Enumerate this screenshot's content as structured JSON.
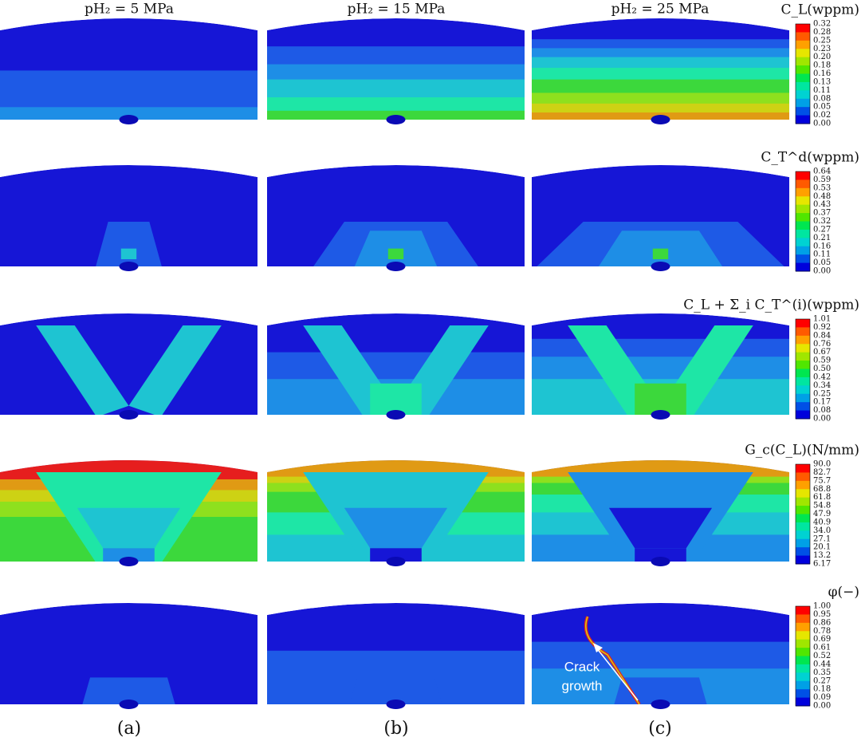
{
  "columns": [
    {
      "title": "pH₂ = 5 MPa",
      "label": "(a)"
    },
    {
      "title": "pH₂ = 15 MPa",
      "label": "(b)"
    },
    {
      "title": "pH₂ = 25 MPa",
      "label": "(c)"
    }
  ],
  "rows": [
    {
      "colorbar_title": "C_L(wppm)",
      "ticks": [
        "0.32",
        "0.28",
        "0.25",
        "0.23",
        "0.20",
        "0.18",
        "0.16",
        "0.13",
        "0.11",
        "0.08",
        "0.05",
        "0.02",
        "0.00"
      ]
    },
    {
      "colorbar_title": "C_T^d(wppm)",
      "ticks": [
        "0.64",
        "0.59",
        "0.53",
        "0.48",
        "0.43",
        "0.37",
        "0.32",
        "0.27",
        "0.21",
        "0.16",
        "0.11",
        "0.05",
        "0.00"
      ]
    },
    {
      "colorbar_title": "C_L + Σ_i C_T^(i)(wppm)",
      "ticks": [
        "1.01",
        "0.92",
        "0.84",
        "0.76",
        "0.67",
        "0.59",
        "0.50",
        "0.42",
        "0.34",
        "0.25",
        "0.17",
        "0.08",
        "0.00"
      ]
    },
    {
      "colorbar_title": "G_c(C_L)(N/mm)",
      "ticks": [
        "90.0",
        "82.7",
        "75.7",
        "68.8",
        "61.8",
        "54.8",
        "47.9",
        "40.9",
        "34.0",
        "27.1",
        "20.1",
        "13.2",
        "6.17"
      ]
    },
    {
      "colorbar_title": "φ(−)",
      "ticks": [
        "1.00",
        "0.95",
        "0.86",
        "0.78",
        "0.69",
        "0.61",
        "0.52",
        "0.44",
        "0.35",
        "0.27",
        "0.18",
        "0.09",
        "0.00"
      ]
    }
  ],
  "annotation": {
    "lines": [
      "Crack",
      "growth"
    ]
  }
}
